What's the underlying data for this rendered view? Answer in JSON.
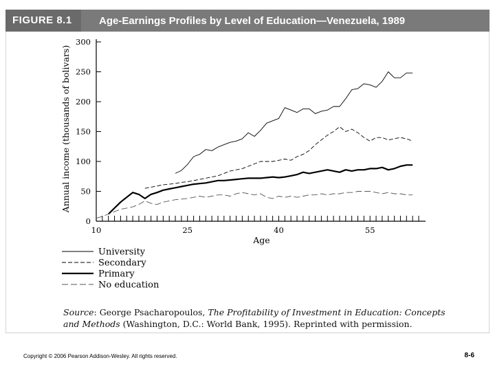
{
  "header": {
    "figure_number": "FIGURE 8.1",
    "title": "Age-Earnings Profiles by Level of Education—Venezuela, 1989"
  },
  "chart_data": {
    "type": "line",
    "title": "Age-Earnings Profiles by Level of Education—Venezuela, 1989",
    "xlabel": "Age",
    "ylabel": "Annual income (thousands of bolivars)",
    "xlim": [
      10,
      63
    ],
    "ylim": [
      0,
      300
    ],
    "xticks": [
      10,
      25,
      40,
      55
    ],
    "yticks": [
      0,
      50,
      100,
      150,
      200,
      250,
      300
    ],
    "grid": false,
    "legend_position": "bottom-left",
    "series": [
      {
        "name": "University",
        "style": "solid-thin",
        "x": [
          23,
          24,
          25,
          26,
          27,
          28,
          29,
          30,
          31,
          32,
          33,
          34,
          35,
          36,
          37,
          38,
          39,
          40,
          41,
          42,
          43,
          44,
          45,
          46,
          47,
          48,
          49,
          50,
          51,
          52,
          53,
          54,
          55,
          56,
          57,
          58,
          59,
          60,
          61,
          62
        ],
        "y": [
          80,
          85,
          95,
          108,
          112,
          120,
          118,
          124,
          128,
          132,
          134,
          138,
          148,
          142,
          152,
          164,
          168,
          172,
          190,
          186,
          182,
          188,
          188,
          180,
          184,
          186,
          192,
          192,
          205,
          220,
          222,
          230,
          228,
          224,
          234,
          250,
          240,
          240,
          248,
          248
        ]
      },
      {
        "name": "Secondary",
        "style": "dashed",
        "x": [
          18,
          19,
          20,
          21,
          22,
          23,
          24,
          25,
          26,
          27,
          28,
          29,
          30,
          31,
          32,
          33,
          34,
          35,
          36,
          37,
          38,
          39,
          40,
          41,
          42,
          43,
          44,
          45,
          46,
          47,
          48,
          49,
          50,
          51,
          52,
          53,
          54,
          55,
          56,
          57,
          58,
          59,
          60,
          61,
          62
        ],
        "y": [
          55,
          57,
          59,
          61,
          62,
          63,
          65,
          66,
          68,
          70,
          72,
          74,
          76,
          80,
          84,
          86,
          88,
          92,
          96,
          100,
          100,
          100,
          102,
          104,
          102,
          108,
          112,
          118,
          128,
          136,
          144,
          150,
          158,
          150,
          154,
          148,
          140,
          134,
          140,
          140,
          136,
          138,
          140,
          138,
          134
        ]
      },
      {
        "name": "Primary",
        "style": "solid-thick",
        "x": [
          12,
          13,
          14,
          15,
          16,
          17,
          18,
          19,
          20,
          21,
          22,
          23,
          24,
          25,
          26,
          27,
          28,
          29,
          30,
          31,
          32,
          33,
          34,
          35,
          36,
          37,
          38,
          39,
          40,
          41,
          42,
          43,
          44,
          45,
          46,
          47,
          48,
          49,
          50,
          51,
          52,
          53,
          54,
          55,
          56,
          57,
          58,
          59,
          60,
          61,
          62
        ],
        "y": [
          12,
          22,
          32,
          40,
          48,
          45,
          38,
          45,
          48,
          52,
          54,
          56,
          58,
          60,
          62,
          63,
          64,
          66,
          68,
          68,
          69,
          70,
          71,
          72,
          72,
          72,
          73,
          74,
          73,
          74,
          76,
          78,
          82,
          80,
          82,
          84,
          86,
          84,
          82,
          86,
          84,
          86,
          86,
          88,
          88,
          90,
          86,
          88,
          92,
          94,
          94
        ]
      },
      {
        "name": "No education",
        "style": "dashed-thin",
        "x": [
          10,
          11,
          12,
          13,
          14,
          15,
          16,
          17,
          18,
          19,
          20,
          21,
          22,
          23,
          24,
          25,
          26,
          27,
          28,
          29,
          30,
          31,
          32,
          33,
          34,
          35,
          36,
          37,
          38,
          39,
          40,
          41,
          42,
          43,
          44,
          45,
          46,
          47,
          48,
          49,
          50,
          51,
          52,
          53,
          54,
          55,
          56,
          57,
          58,
          59,
          60,
          61,
          62
        ],
        "y": [
          5,
          8,
          12,
          16,
          20,
          22,
          24,
          28,
          34,
          30,
          28,
          32,
          34,
          36,
          37,
          38,
          40,
          42,
          40,
          42,
          44,
          44,
          42,
          46,
          48,
          46,
          44,
          46,
          40,
          38,
          42,
          40,
          42,
          40,
          42,
          44,
          44,
          46,
          44,
          46,
          46,
          48,
          48,
          50,
          50,
          50,
          48,
          46,
          48,
          46,
          46,
          44,
          44
        ]
      }
    ]
  },
  "source": {
    "label": "Source",
    "prefix": ": George Psacharopoulos, ",
    "book_title": "The Profitability of Investment in Education: Concepts and Methods",
    "suffix": " (Washington, D.C.: World Bank, 1995). Reprinted with permission."
  },
  "footer": {
    "copyright": "Copyright © 2006 Pearson Addison-Wesley. All rights reserved.",
    "page_number": "8-6"
  },
  "colors": {
    "header_bg": "#7a7a7a",
    "figure_number_bg": "#6a6a6a",
    "header_text": "#ffffff",
    "line_color": "#000000",
    "dashed_light": "#555555"
  }
}
